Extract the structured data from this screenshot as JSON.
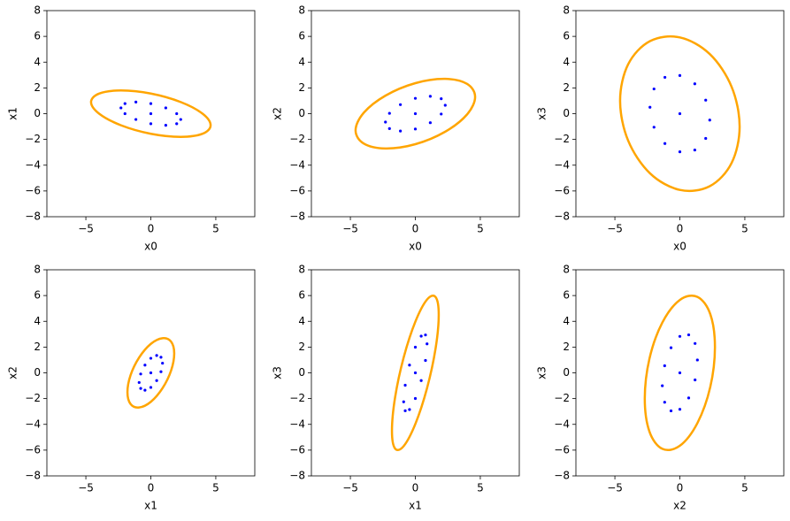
{
  "chart_data": [
    {
      "type": "scatter",
      "xlabel": "x0",
      "ylabel": "x1",
      "xlim": [
        -8,
        8
      ],
      "ylim": [
        -8,
        8
      ],
      "xticks": [
        {
          "value": -5,
          "label": "−5"
        },
        0,
        5
      ],
      "yticks": [
        {
          "value": -8,
          "label": "−8"
        },
        {
          "value": -6,
          "label": "−6"
        },
        {
          "value": -4,
          "label": "−4"
        },
        {
          "value": -2,
          "label": "−2"
        },
        0,
        2,
        4,
        6,
        8
      ],
      "series": [
        {
          "type": "scatter",
          "color": "#0000ff",
          "x": [
            0,
            2.3,
            1.99,
            1.15,
            0,
            -1.15,
            -1.99,
            -2.3,
            -1.99,
            -1.15,
            0,
            1.15,
            1.99
          ],
          "y": [
            0,
            -0.45,
            0,
            0.45,
            0.78,
            0.9,
            0.78,
            0.45,
            0,
            -0.45,
            -0.78,
            -0.9,
            -0.78
          ]
        },
        {
          "type": "line",
          "closed": true,
          "color": "#ffa500",
          "x": [
            4.6,
            3.98,
            2.3,
            0,
            -2.3,
            -3.98,
            -4.6,
            -3.98,
            -2.3,
            0,
            2.3,
            3.98
          ],
          "y": [
            -0.9,
            0,
            0.9,
            1.56,
            1.8,
            1.56,
            0.9,
            0,
            -0.9,
            -1.56,
            -1.8,
            -1.56
          ]
        }
      ]
    },
    {
      "type": "scatter",
      "xlabel": "x0",
      "ylabel": "x2",
      "xlim": [
        -8,
        8
      ],
      "ylim": [
        -8,
        8
      ],
      "xticks": [
        {
          "value": -5,
          "label": "−5"
        },
        0,
        5
      ],
      "yticks": [
        {
          "value": -8,
          "label": "−8"
        },
        {
          "value": -6,
          "label": "−6"
        },
        {
          "value": -4,
          "label": "−4"
        },
        {
          "value": -2,
          "label": "−2"
        },
        0,
        2,
        4,
        6,
        8
      ],
      "series": [
        {
          "type": "scatter",
          "color": "#0000ff",
          "x": [
            0,
            2.3,
            1.99,
            1.15,
            0,
            -1.15,
            -1.99,
            -2.3,
            -1.99,
            -1.15,
            0,
            1.15,
            1.99
          ],
          "y": [
            0,
            0.65,
            1.16,
            1.35,
            1.19,
            0.7,
            0.03,
            -0.65,
            -1.16,
            -1.35,
            -1.19,
            -0.7,
            -0.03
          ]
        },
        {
          "type": "line",
          "closed": true,
          "color": "#ffa500",
          "x": [
            4.6,
            3.98,
            2.3,
            0,
            -2.3,
            -3.98,
            -4.6,
            -3.98,
            -2.3,
            0,
            2.3,
            3.98
          ],
          "y": [
            1.3,
            2.31,
            2.7,
            2.37,
            1.4,
            0.06,
            -1.3,
            -2.31,
            -2.7,
            -2.37,
            -1.4,
            -0.06
          ]
        }
      ]
    },
    {
      "type": "scatter",
      "xlabel": "x0",
      "ylabel": "x3",
      "xlim": [
        -8,
        8
      ],
      "ylim": [
        -8,
        8
      ],
      "xticks": [
        {
          "value": -5,
          "label": "−5"
        },
        0,
        5
      ],
      "yticks": [
        {
          "value": -8,
          "label": "−8"
        },
        {
          "value": -6,
          "label": "−6"
        },
        {
          "value": -4,
          "label": "−4"
        },
        {
          "value": -2,
          "label": "−2"
        },
        0,
        2,
        4,
        6,
        8
      ],
      "series": [
        {
          "type": "scatter",
          "color": "#0000ff",
          "x": [
            0,
            2.3,
            1.99,
            1.15,
            0,
            -1.15,
            -1.99,
            -2.3,
            -1.99,
            -1.15,
            0,
            1.15,
            1.99
          ],
          "y": [
            0,
            -0.5,
            1.05,
            2.32,
            2.96,
            2.82,
            1.92,
            0.5,
            -1.05,
            -2.32,
            -2.96,
            -2.82,
            -1.92
          ]
        },
        {
          "type": "line",
          "closed": true,
          "color": "#ffa500",
          "x": [
            4.6,
            3.98,
            2.3,
            0,
            -2.3,
            -3.98,
            -4.6,
            -3.98,
            -2.3,
            0,
            2.3,
            3.98
          ],
          "y": [
            -1,
            2.09,
            4.63,
            5.92,
            5.63,
            3.83,
            1,
            -2.09,
            -4.63,
            -5.92,
            -5.63,
            -3.83
          ]
        }
      ]
    },
    {
      "type": "scatter",
      "xlabel": "x1",
      "ylabel": "x2",
      "xlim": [
        -8,
        8
      ],
      "ylim": [
        -8,
        8
      ],
      "xticks": [
        {
          "value": -5,
          "label": "−5"
        },
        0,
        5
      ],
      "yticks": [
        {
          "value": -8,
          "label": "−8"
        },
        {
          "value": -6,
          "label": "−6"
        },
        {
          "value": -4,
          "label": "−4"
        },
        {
          "value": -2,
          "label": "−2"
        },
        0,
        2,
        4,
        6,
        8
      ],
      "series": [
        {
          "type": "scatter",
          "color": "#0000ff",
          "x": [
            0,
            0.9,
            0.78,
            0.45,
            0,
            -0.45,
            -0.78,
            -0.9,
            -0.78,
            -0.45,
            0,
            0.45,
            0.78
          ],
          "y": [
            0,
            0.75,
            1.21,
            1.35,
            1.13,
            0.6,
            -0.09,
            -0.75,
            -1.21,
            -1.35,
            -1.13,
            -0.6,
            0.09
          ]
        },
        {
          "type": "line",
          "closed": true,
          "color": "#ffa500",
          "x": [
            1.8,
            1.56,
            0.9,
            0,
            -0.9,
            -1.56,
            -1.8,
            -1.56,
            -0.9,
            0,
            0.9,
            1.56
          ],
          "y": [
            1.5,
            2.42,
            2.69,
            2.25,
            1.19,
            -0.18,
            -1.5,
            -2.42,
            -2.69,
            -2.25,
            -1.19,
            0.18
          ]
        }
      ]
    },
    {
      "type": "scatter",
      "xlabel": "x1",
      "ylabel": "x3",
      "xlim": [
        -8,
        8
      ],
      "ylim": [
        -8,
        8
      ],
      "xticks": [
        {
          "value": -5,
          "label": "−5"
        },
        0,
        5
      ],
      "yticks": [
        {
          "value": -8,
          "label": "−8"
        },
        {
          "value": -6,
          "label": "−6"
        },
        {
          "value": -4,
          "label": "−4"
        },
        {
          "value": -2,
          "label": "−2"
        },
        0,
        2,
        4,
        6,
        8
      ],
      "series": [
        {
          "type": "scatter",
          "color": "#0000ff",
          "x": [
            0,
            0.9,
            0.78,
            0.45,
            0,
            -0.45,
            -0.78,
            -0.9,
            -0.78,
            -0.45,
            0,
            0.45,
            0.78
          ],
          "y": [
            0,
            2.25,
            2.94,
            2.85,
            1.99,
            0.6,
            -0.96,
            -2.25,
            -2.94,
            -2.85,
            -1.99,
            -0.6,
            0.96
          ]
        },
        {
          "type": "line",
          "closed": true,
          "color": "#ffa500",
          "x": [
            1.8,
            1.56,
            0.9,
            0,
            -0.9,
            -1.56,
            -1.8,
            -1.56,
            -0.9,
            0,
            0.9,
            1.56
          ],
          "y": [
            4.5,
            5.88,
            5.69,
            3.97,
            1.19,
            -1.91,
            -4.5,
            -5.88,
            -5.69,
            -3.97,
            -1.19,
            1.91
          ]
        }
      ]
    },
    {
      "type": "scatter",
      "xlabel": "x2",
      "ylabel": "x3",
      "xlim": [
        -8,
        8
      ],
      "ylim": [
        -8,
        8
      ],
      "xticks": [
        {
          "value": -5,
          "label": "−5"
        },
        0,
        5
      ],
      "yticks": [
        {
          "value": -8,
          "label": "−8"
        },
        {
          "value": -6,
          "label": "−6"
        },
        {
          "value": -4,
          "label": "−4"
        },
        {
          "value": -2,
          "label": "−2"
        },
        0,
        2,
        4,
        6,
        8
      ],
      "series": [
        {
          "type": "scatter",
          "color": "#0000ff",
          "x": [
            0,
            1.35,
            1.17,
            0.68,
            0,
            -0.68,
            -1.17,
            -1.35,
            -1.17,
            -0.68,
            0,
            0.68,
            1.17
          ],
          "y": [
            0,
            1,
            2.28,
            2.95,
            2.83,
            1.95,
            0.55,
            -1,
            -2.28,
            -2.95,
            -2.83,
            -1.95,
            -0.55
          ]
        },
        {
          "type": "line",
          "closed": true,
          "color": "#ffa500",
          "x": [
            2.7,
            2.34,
            1.35,
            0,
            -1.35,
            -2.34,
            -2.7,
            -2.34,
            -1.35,
            0,
            1.35,
            2.34
          ],
          "y": [
            2,
            4.56,
            5.9,
            5.66,
            3.9,
            1.1,
            -2,
            -4.56,
            -5.9,
            -5.66,
            -3.9,
            -1.1
          ]
        }
      ]
    }
  ]
}
